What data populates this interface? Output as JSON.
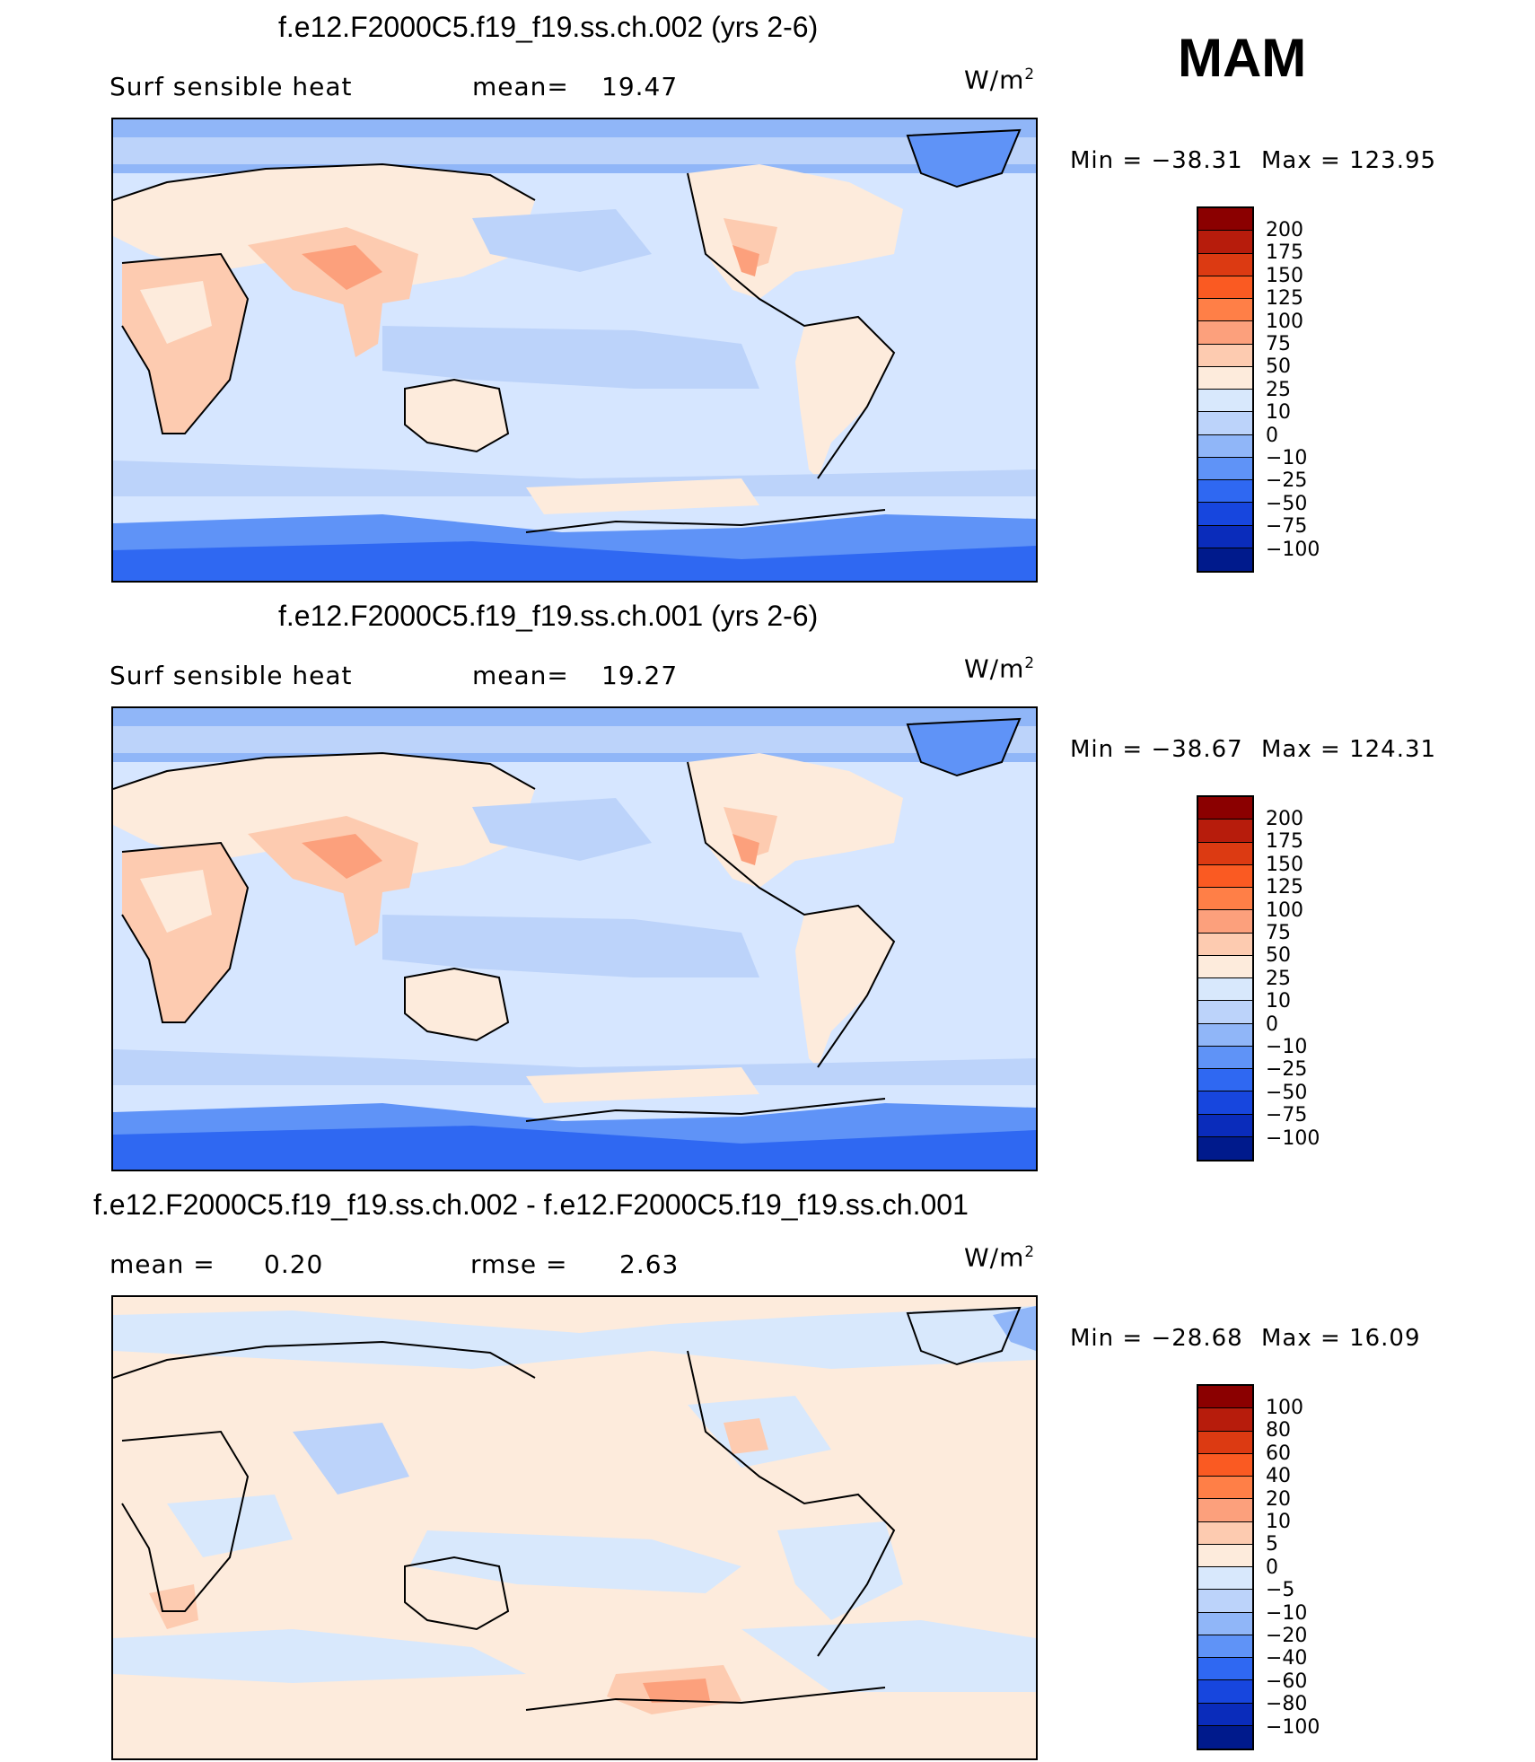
{
  "season": "MAM",
  "units_base": "W/m",
  "units_exp": "2",
  "panels": [
    {
      "title": "f.e12.F2000C5.f19_f19.ss.ch.002 (yrs 2-6)",
      "left_label": "Surf  sensible  heat",
      "stat_label": "mean=",
      "stat_value": "19.47",
      "min_label": "Min  =  −38.31",
      "max_label": "Max  =  123.95",
      "colorbar_labels": [
        "200",
        "175",
        "150",
        "125",
        "100",
        "75",
        "50",
        "25",
        "10",
        "0",
        "−10",
        "−25",
        "−50",
        "−75",
        "−100"
      ]
    },
    {
      "title": "f.e12.F2000C5.f19_f19.ss.ch.001 (yrs 2-6)",
      "left_label": "Surf  sensible  heat",
      "stat_label": "mean=",
      "stat_value": "19.27",
      "min_label": "Min  =  −38.67",
      "max_label": "Max  =  124.31",
      "colorbar_labels": [
        "200",
        "175",
        "150",
        "125",
        "100",
        "75",
        "50",
        "25",
        "10",
        "0",
        "−10",
        "−25",
        "−50",
        "−75",
        "−100"
      ]
    },
    {
      "title": "f.e12.F2000C5.f19_f19.ss.ch.002 - f.e12.F2000C5.f19_f19.ss.ch.001",
      "left_label": "mean  =",
      "left_value": "0.20",
      "stat_label": "rmse  =",
      "stat_value": "2.63",
      "min_label": "Min  =  −28.68",
      "max_label": "Max  =    16.09",
      "colorbar_labels": [
        "100",
        "80",
        "60",
        "40",
        "20",
        "10",
        "5",
        "0",
        "−5",
        "−10",
        "−20",
        "−40",
        "−60",
        "−80",
        "−100"
      ]
    }
  ],
  "colors": {
    "scale": [
      "#8b0000",
      "#b71c0c",
      "#dc3a12",
      "#fa5a22",
      "#ff7f47",
      "#fca07c",
      "#fdcbb0",
      "#fdebdc",
      "#d8e8fc",
      "#bcd3fa",
      "#90b6f8",
      "#5f93f7",
      "#2f68f2",
      "#1746de",
      "#0a2cbb",
      "#001a8c"
    ]
  }
}
